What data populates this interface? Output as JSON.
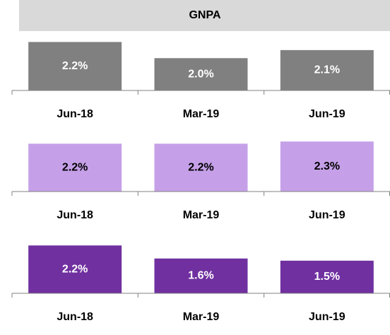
{
  "header": {
    "title": "GNPA",
    "color": "#d9d9d9"
  },
  "chart_data": [
    {
      "type": "bar",
      "categories": [
        "Jun-18",
        "Mar-19",
        "Jun-19"
      ],
      "values": [
        2.2,
        2.0,
        2.1
      ],
      "value_labels": [
        "2.2%",
        "2.0%",
        "2.1%"
      ],
      "color": "#808080",
      "label_color": "#ffffff",
      "ylim": [
        1.6,
        2.3
      ]
    },
    {
      "type": "bar",
      "categories": [
        "Jun-18",
        "Mar-19",
        "Jun-19"
      ],
      "values": [
        2.2,
        2.2,
        2.3
      ],
      "value_labels": [
        "2.2%",
        "2.2%",
        "2.3%"
      ],
      "color": "#c5a0e8",
      "label_color": "#000000",
      "ylim": [
        0,
        2.6
      ]
    },
    {
      "type": "bar",
      "categories": [
        "Jun-18",
        "Mar-19",
        "Jun-19"
      ],
      "values": [
        2.2,
        1.6,
        1.5
      ],
      "value_labels": [
        "2.2%",
        "1.6%",
        "1.5%"
      ],
      "color": "#7030a0",
      "label_color": "#ffffff",
      "ylim": [
        0,
        2.6
      ]
    }
  ]
}
